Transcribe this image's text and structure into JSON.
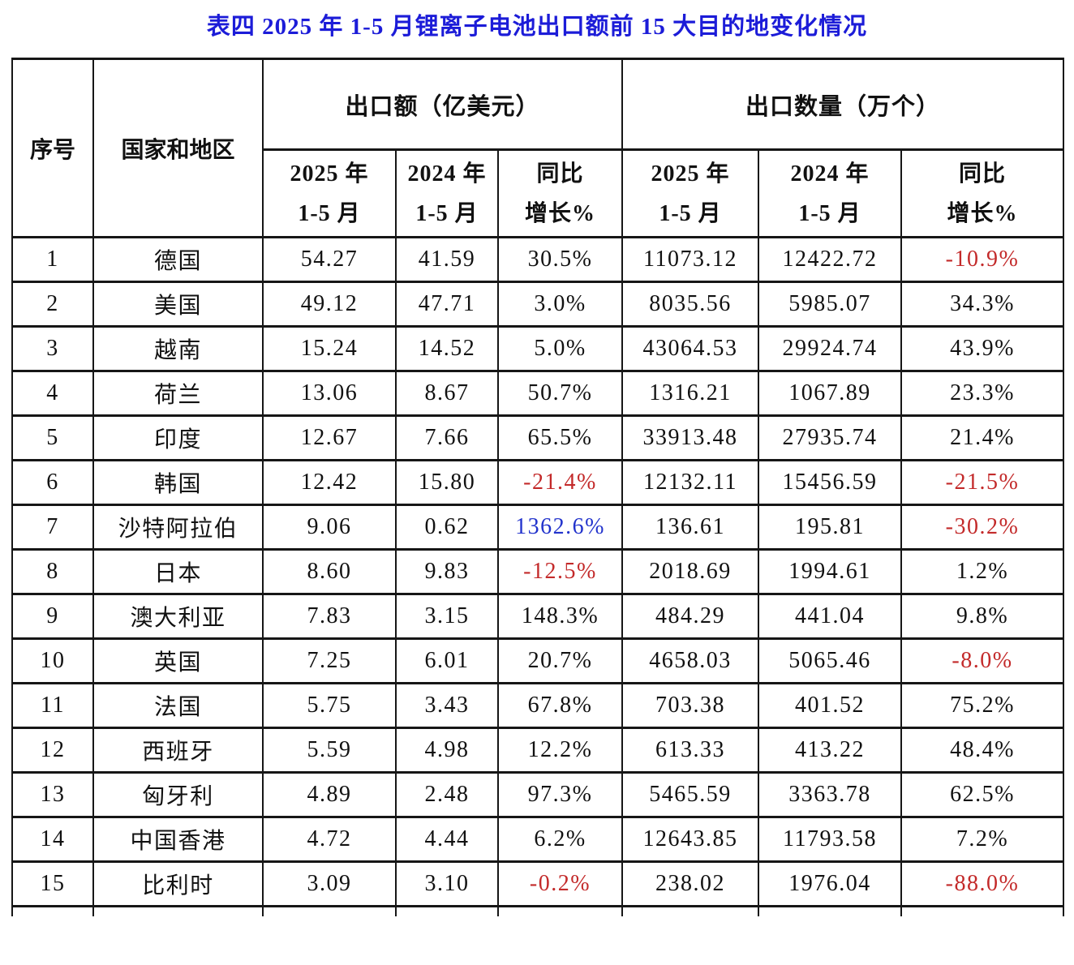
{
  "title": "表四 2025 年 1-5 月锂离子电池出口额前 15 大目的地变化情况",
  "colors": {
    "title_blue": "#1c1cd8",
    "highlight_blue": "#2233cc",
    "negative_red": "#c32a2a",
    "border_black": "#161616"
  },
  "table": {
    "headers": {
      "index": "序号",
      "country": "国家和地区",
      "value_group": "出口额（亿美元）",
      "qty_group": "出口数量（万个）"
    },
    "sub_headers": [
      {
        "line1": "2025 年",
        "line2": "1-5 月"
      },
      {
        "line1": "2024 年",
        "line2": "1-5 月"
      },
      {
        "line1": "同比",
        "line2": "增长%"
      },
      {
        "line1": "2025 年",
        "line2": "1-5 月"
      },
      {
        "line1": "2024 年",
        "line2": "1-5 月"
      },
      {
        "line1": "同比",
        "line2": "增长%"
      }
    ],
    "rows": [
      {
        "no": "1",
        "country": "德国",
        "val_2025": "54.27",
        "val_2024": "41.59",
        "val_growth": "30.5%",
        "val_growth_color": "black",
        "qty_2025": "11073.12",
        "qty_2024": "12422.72",
        "qty_growth": "-10.9%",
        "qty_growth_color": "red"
      },
      {
        "no": "2",
        "country": "美国",
        "val_2025": "49.12",
        "val_2024": "47.71",
        "val_growth": "3.0%",
        "val_growth_color": "black",
        "qty_2025": "8035.56",
        "qty_2024": "5985.07",
        "qty_growth": "34.3%",
        "qty_growth_color": "black"
      },
      {
        "no": "3",
        "country": "越南",
        "val_2025": "15.24",
        "val_2024": "14.52",
        "val_growth": "5.0%",
        "val_growth_color": "black",
        "qty_2025": "43064.53",
        "qty_2024": "29924.74",
        "qty_growth": "43.9%",
        "qty_growth_color": "black"
      },
      {
        "no": "4",
        "country": "荷兰",
        "val_2025": "13.06",
        "val_2024": "8.67",
        "val_growth": "50.7%",
        "val_growth_color": "black",
        "qty_2025": "1316.21",
        "qty_2024": "1067.89",
        "qty_growth": "23.3%",
        "qty_growth_color": "black"
      },
      {
        "no": "5",
        "country": "印度",
        "val_2025": "12.67",
        "val_2024": "7.66",
        "val_growth": "65.5%",
        "val_growth_color": "black",
        "qty_2025": "33913.48",
        "qty_2024": "27935.74",
        "qty_growth": "21.4%",
        "qty_growth_color": "black"
      },
      {
        "no": "6",
        "country": "韩国",
        "val_2025": "12.42",
        "val_2024": "15.80",
        "val_growth": "-21.4%",
        "val_growth_color": "red",
        "qty_2025": "12132.11",
        "qty_2024": "15456.59",
        "qty_growth": "-21.5%",
        "qty_growth_color": "red"
      },
      {
        "no": "7",
        "country": "沙特阿拉伯",
        "val_2025": "9.06",
        "val_2024": "0.62",
        "val_growth": "1362.6%",
        "val_growth_color": "blue",
        "qty_2025": "136.61",
        "qty_2024": "195.81",
        "qty_growth": "-30.2%",
        "qty_growth_color": "red"
      },
      {
        "no": "8",
        "country": "日本",
        "val_2025": "8.60",
        "val_2024": "9.83",
        "val_growth": "-12.5%",
        "val_growth_color": "red",
        "qty_2025": "2018.69",
        "qty_2024": "1994.61",
        "qty_growth": "1.2%",
        "qty_growth_color": "black"
      },
      {
        "no": "9",
        "country": "澳大利亚",
        "val_2025": "7.83",
        "val_2024": "3.15",
        "val_growth": "148.3%",
        "val_growth_color": "black",
        "qty_2025": "484.29",
        "qty_2024": "441.04",
        "qty_growth": "9.8%",
        "qty_growth_color": "black"
      },
      {
        "no": "10",
        "country": "英国",
        "val_2025": "7.25",
        "val_2024": "6.01",
        "val_growth": "20.7%",
        "val_growth_color": "black",
        "qty_2025": "4658.03",
        "qty_2024": "5065.46",
        "qty_growth": "-8.0%",
        "qty_growth_color": "red"
      },
      {
        "no": "11",
        "country": "法国",
        "val_2025": "5.75",
        "val_2024": "3.43",
        "val_growth": "67.8%",
        "val_growth_color": "black",
        "qty_2025": "703.38",
        "qty_2024": "401.52",
        "qty_growth": "75.2%",
        "qty_growth_color": "black"
      },
      {
        "no": "12",
        "country": "西班牙",
        "val_2025": "5.59",
        "val_2024": "4.98",
        "val_growth": "12.2%",
        "val_growth_color": "black",
        "qty_2025": "613.33",
        "qty_2024": "413.22",
        "qty_growth": "48.4%",
        "qty_growth_color": "black"
      },
      {
        "no": "13",
        "country": "匈牙利",
        "val_2025": "4.89",
        "val_2024": "2.48",
        "val_growth": "97.3%",
        "val_growth_color": "black",
        "qty_2025": "5465.59",
        "qty_2024": "3363.78",
        "qty_growth": "62.5%",
        "qty_growth_color": "black"
      },
      {
        "no": "14",
        "country": "中国香港",
        "val_2025": "4.72",
        "val_2024": "4.44",
        "val_growth": "6.2%",
        "val_growth_color": "black",
        "qty_2025": "12643.85",
        "qty_2024": "11793.58",
        "qty_growth": "7.2%",
        "qty_growth_color": "black"
      },
      {
        "no": "15",
        "country": "比利时",
        "val_2025": "3.09",
        "val_2024": "3.10",
        "val_growth": "-0.2%",
        "val_growth_color": "red",
        "qty_2025": "238.02",
        "qty_2024": "1976.04",
        "qty_growth": "-88.0%",
        "qty_growth_color": "red"
      }
    ]
  }
}
